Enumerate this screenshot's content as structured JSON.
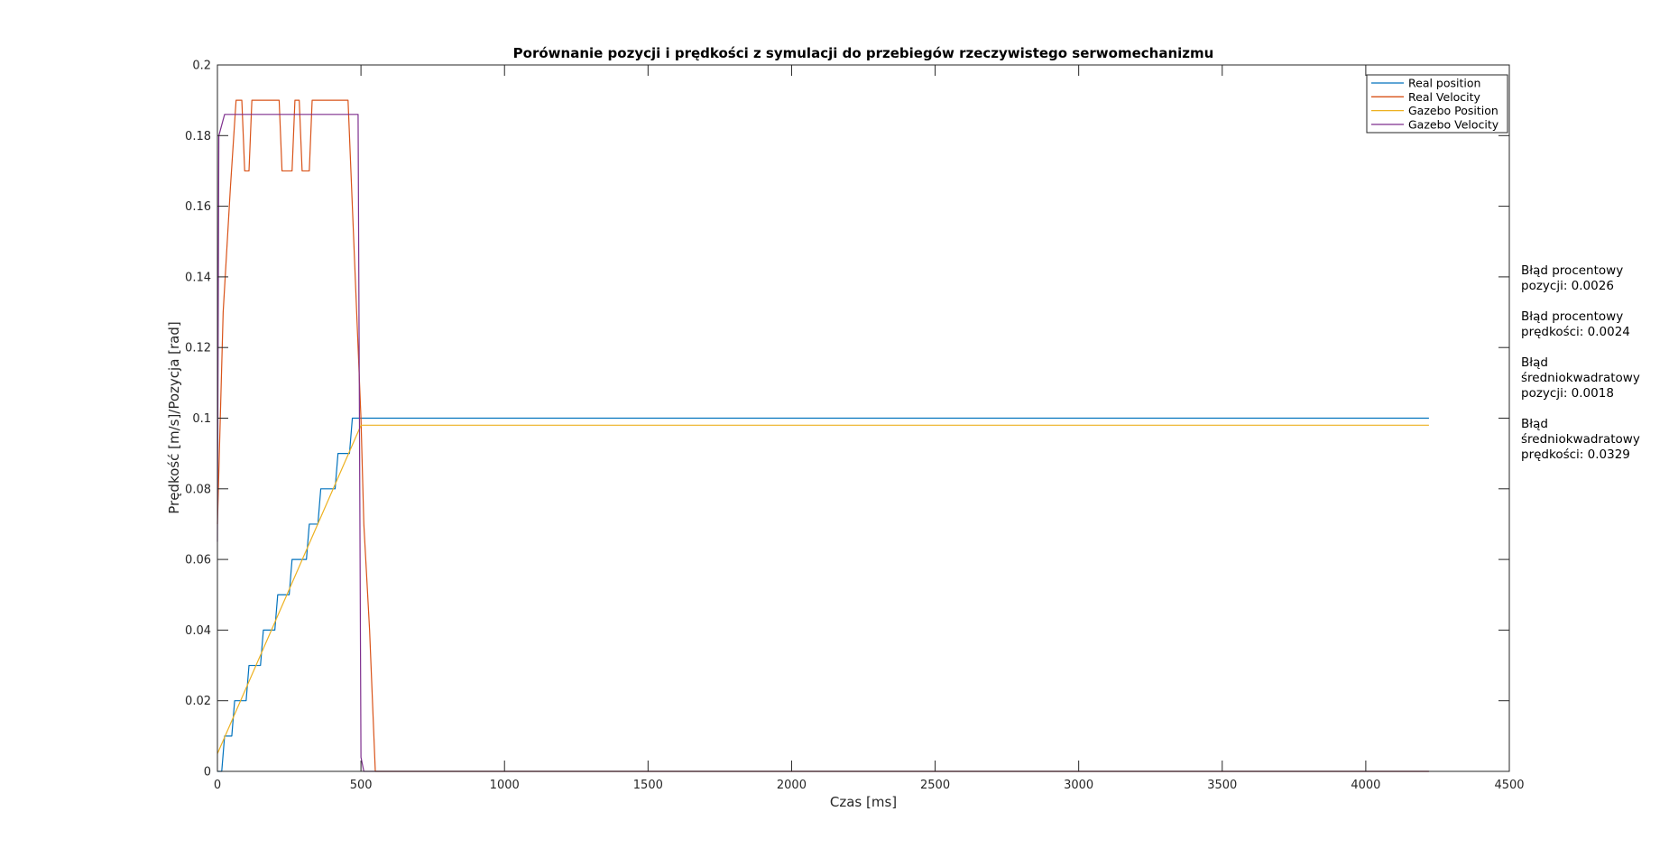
{
  "chart_data": {
    "type": "line",
    "title": "Porównanie pozycji i prędkości z symulacji do przebiegów rzeczywistego serwomechanizmu",
    "xlabel": "Czas [ms]",
    "ylabel": "Prędkość [m/s]/Pozycja [rad]",
    "xlim": [
      0,
      4500
    ],
    "ylim": [
      0,
      0.2
    ],
    "xticks": [
      0,
      500,
      1000,
      1500,
      2000,
      2500,
      3000,
      3500,
      4000,
      4500
    ],
    "yticks": [
      0,
      0.02,
      0.04,
      0.06,
      0.08,
      0.1,
      0.12,
      0.14,
      0.16,
      0.18,
      0.2
    ],
    "xtick_labels": [
      "0",
      "500",
      "1000",
      "1500",
      "2000",
      "2500",
      "3000",
      "3500",
      "4000",
      "4500"
    ],
    "ytick_labels": [
      "0",
      "0.02",
      "0.04",
      "0.06",
      "0.08",
      "0.1",
      "0.12",
      "0.14",
      "0.16",
      "0.18",
      "0.2"
    ],
    "grid": false,
    "legend_position": "top-right",
    "series": [
      {
        "name": "Real position",
        "color": "#0072BD",
        "points": [
          [
            0,
            0
          ],
          [
            15,
            0
          ],
          [
            25,
            0.01
          ],
          [
            50,
            0.01
          ],
          [
            60,
            0.02
          ],
          [
            100,
            0.02
          ],
          [
            110,
            0.03
          ],
          [
            150,
            0.03
          ],
          [
            160,
            0.04
          ],
          [
            200,
            0.04
          ],
          [
            210,
            0.05
          ],
          [
            250,
            0.05
          ],
          [
            260,
            0.06
          ],
          [
            310,
            0.06
          ],
          [
            320,
            0.07
          ],
          [
            350,
            0.07
          ],
          [
            360,
            0.08
          ],
          [
            410,
            0.08
          ],
          [
            420,
            0.09
          ],
          [
            460,
            0.09
          ],
          [
            470,
            0.1
          ],
          [
            4220,
            0.1
          ]
        ]
      },
      {
        "name": "Real Velocity",
        "color": "#D95319",
        "points": [
          [
            0,
            0.07
          ],
          [
            20,
            0.13
          ],
          [
            45,
            0.165
          ],
          [
            65,
            0.19
          ],
          [
            85,
            0.19
          ],
          [
            95,
            0.17
          ],
          [
            110,
            0.17
          ],
          [
            120,
            0.19
          ],
          [
            215,
            0.19
          ],
          [
            225,
            0.17
          ],
          [
            260,
            0.17
          ],
          [
            270,
            0.19
          ],
          [
            285,
            0.19
          ],
          [
            295,
            0.17
          ],
          [
            320,
            0.17
          ],
          [
            330,
            0.19
          ],
          [
            455,
            0.19
          ],
          [
            480,
            0.14
          ],
          [
            500,
            0.1
          ],
          [
            510,
            0.07
          ],
          [
            530,
            0.04
          ],
          [
            545,
            0.01
          ],
          [
            550,
            0
          ],
          [
            4220,
            0
          ]
        ]
      },
      {
        "name": "Gazebo Position",
        "color": "#EDB120",
        "points": [
          [
            0,
            0.005
          ],
          [
            500,
            0.098
          ],
          [
            4220,
            0.098
          ]
        ]
      },
      {
        "name": "Gazebo Velocity",
        "color": "#7E2F8E",
        "points": [
          [
            0,
            0.065
          ],
          [
            5,
            0.18
          ],
          [
            25,
            0.186
          ],
          [
            490,
            0.186
          ],
          [
            500,
            0.004
          ],
          [
            510,
            0
          ],
          [
            4220,
            0
          ]
        ]
      }
    ]
  },
  "annotations": [
    "Błąd procentowy pozycji: 0.0026",
    "Błąd procentowy prędkości: 0.0024",
    "Błąd średniokwadratowy pozycji: 0.0018",
    "Błąd średniokwadratowy prędkości: 0.0329"
  ]
}
